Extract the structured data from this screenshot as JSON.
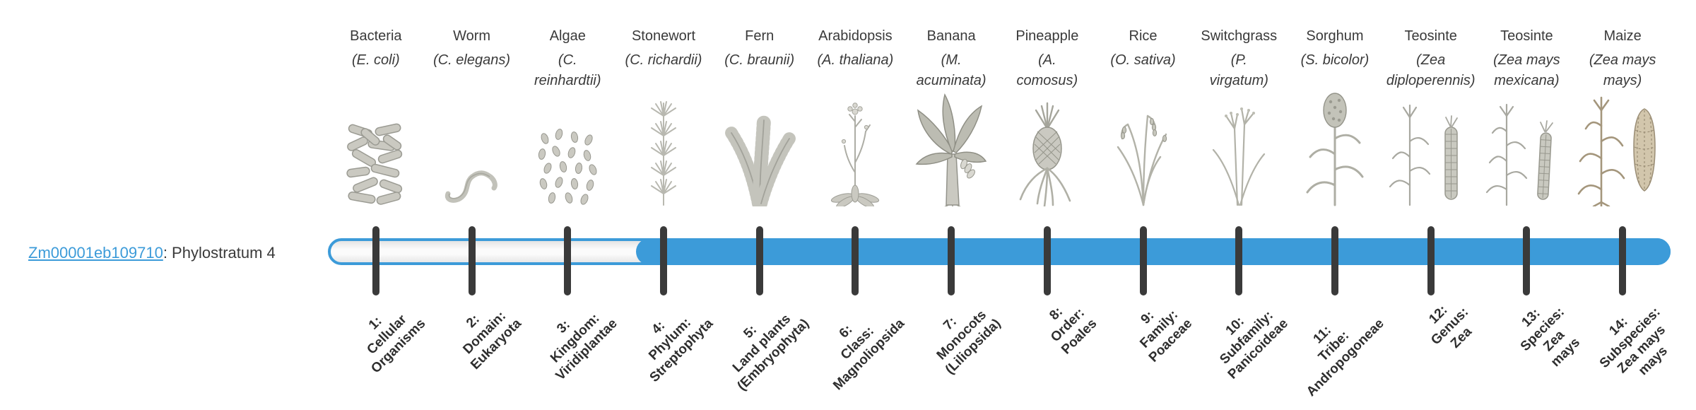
{
  "gene": {
    "id": "Zm00001eb109710",
    "label_suffix": ": Phylostratum 4",
    "phylostratum": 4
  },
  "bar": {
    "fill_color": "#3c9bd9",
    "track_border_color": "#3c9bd9",
    "tick_color": "#3a3a3a",
    "filled_from_stratum": 4,
    "total_strata": 14
  },
  "link_color": "#3c9bd9",
  "columns": [
    {
      "stratum": 1,
      "name": "Bacteria",
      "species": "(E. coli)",
      "illustration": "bacteria-illustration",
      "axis_label": "1:\nCellular\nOrganisms",
      "filled": false
    },
    {
      "stratum": 2,
      "name": "Worm",
      "species": "(C. elegans)",
      "illustration": "worm-illustration",
      "axis_label": "2:\nDomain:\nEukaryota",
      "filled": false
    },
    {
      "stratum": 3,
      "name": "Algae",
      "species": "(C.\nreinhardtii)",
      "illustration": "algae-illustration",
      "axis_label": "3:\nKingdom:\nViridiplantae",
      "filled": false
    },
    {
      "stratum": 4,
      "name": "Stonewort",
      "species": "(C. richardii)",
      "illustration": "stonewort-illustration",
      "axis_label": "4:\nPhylum:\nStreptophyta",
      "filled": true
    },
    {
      "stratum": 5,
      "name": "Fern",
      "species": "(C. braunii)",
      "illustration": "fern-illustration",
      "axis_label": "5:\nLand plants\n(Embryophyta)",
      "filled": true
    },
    {
      "stratum": 6,
      "name": "Arabidopsis",
      "species": "(A. thaliana)",
      "illustration": "arabidopsis-illustration",
      "axis_label": "6:\nClass:\nMagnoliopsida",
      "filled": true
    },
    {
      "stratum": 7,
      "name": "Banana",
      "species": "(M.\nacuminata)",
      "illustration": "banana-illustration",
      "axis_label": "7:\nMonocots\n(Liliopsida)",
      "filled": true
    },
    {
      "stratum": 8,
      "name": "Pineapple",
      "species": "(A.\ncomosus)",
      "illustration": "pineapple-illustration",
      "axis_label": "8:\nOrder:\nPoales",
      "filled": true
    },
    {
      "stratum": 9,
      "name": "Rice",
      "species": "(O. sativa)",
      "illustration": "rice-illustration",
      "axis_label": "9:\nFamily:\nPoaceae",
      "filled": true
    },
    {
      "stratum": 10,
      "name": "Switchgrass",
      "species": "(P.\nvirgatum)",
      "illustration": "switchgrass-illustration",
      "axis_label": "10:\nSubfamily:\nPanicoideae",
      "filled": true
    },
    {
      "stratum": 11,
      "name": "Sorghum",
      "species": "(S. bicolor)",
      "illustration": "sorghum-illustration",
      "axis_label": "11:\nTribe:\nAndropogoneae",
      "filled": true
    },
    {
      "stratum": 12,
      "name": "Teosinte",
      "species": "(Zea\ndiploperennis)",
      "illustration": "teosinte-diploperennis-illustration",
      "axis_label": "12:\nGenus:\nZea",
      "filled": true
    },
    {
      "stratum": 13,
      "name": "Teosinte",
      "species": "(Zea mays\nmexicana)",
      "illustration": "teosinte-mexicana-illustration",
      "axis_label": "13:\nSpecies:\nZea\nmays",
      "filled": true
    },
    {
      "stratum": 14,
      "name": "Maize",
      "species": "(Zea mays\nmays)",
      "illustration": "maize-illustration",
      "axis_label": "14:\nSubspecies:\nZea mays\nmays",
      "filled": true
    }
  ]
}
